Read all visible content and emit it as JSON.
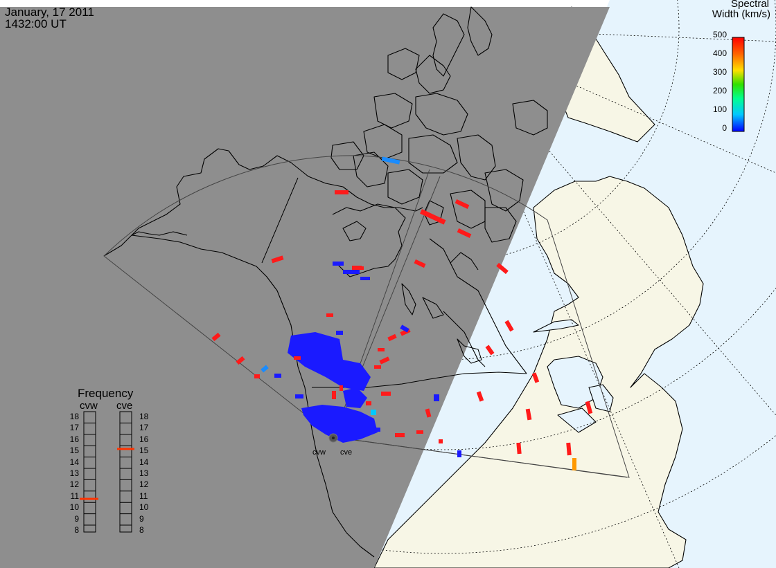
{
  "header": {
    "date": "January, 17 2011",
    "time": "1432:00 UT"
  },
  "colorbar": {
    "title_line1": "Spectral",
    "title_line2": "Width (km/s)",
    "ticks": [
      "500",
      "400",
      "300",
      "200",
      "100",
      "0"
    ]
  },
  "frequency_panel": {
    "title": "Frequency",
    "left_label": "cvw",
    "right_label": "cve",
    "scale": [
      "18",
      "17",
      "16",
      "15",
      "14",
      "13",
      "12",
      "11",
      "10",
      "9",
      "8"
    ],
    "cvw_frequency": 10.8,
    "cve_frequency": 15.2
  },
  "radars": {
    "west": "cvw",
    "east": "cve"
  },
  "colors": {
    "night_side": "#8e8e8e",
    "ocean": "#e6f4fd",
    "land_day": "#f7f6e6",
    "low_width": "#1a1aff",
    "high_width": "#ff1a1a",
    "mid_width": "#ff9900",
    "cyan_width": "#1a8cff"
  }
}
